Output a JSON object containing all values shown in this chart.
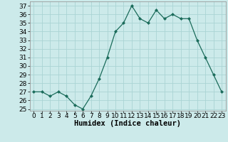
{
  "x": [
    0,
    1,
    2,
    3,
    4,
    5,
    6,
    7,
    8,
    9,
    10,
    11,
    12,
    13,
    14,
    15,
    16,
    17,
    18,
    19,
    20,
    21,
    22,
    23
  ],
  "y": [
    27.0,
    27.0,
    26.5,
    27.0,
    26.5,
    25.5,
    25.0,
    26.5,
    28.5,
    31.0,
    34.0,
    35.0,
    37.0,
    35.5,
    35.0,
    36.5,
    35.5,
    36.0,
    35.5,
    35.5,
    33.0,
    31.0,
    29.0,
    27.0
  ],
  "line_color": "#1a6b5a",
  "marker": "D",
  "marker_size": 2.0,
  "bg_color": "#cceaea",
  "grid_color": "#aad4d4",
  "xlabel": "Humidex (Indice chaleur)",
  "ylim": [
    24.8,
    37.5
  ],
  "xlim": [
    -0.5,
    23.5
  ],
  "yticks": [
    25,
    26,
    27,
    28,
    29,
    30,
    31,
    32,
    33,
    34,
    35,
    36,
    37
  ],
  "xticks": [
    0,
    1,
    2,
    3,
    4,
    5,
    6,
    7,
    8,
    9,
    10,
    11,
    12,
    13,
    14,
    15,
    16,
    17,
    18,
    19,
    20,
    21,
    22,
    23
  ],
  "tick_fontsize": 6.5,
  "label_fontsize": 7.5
}
